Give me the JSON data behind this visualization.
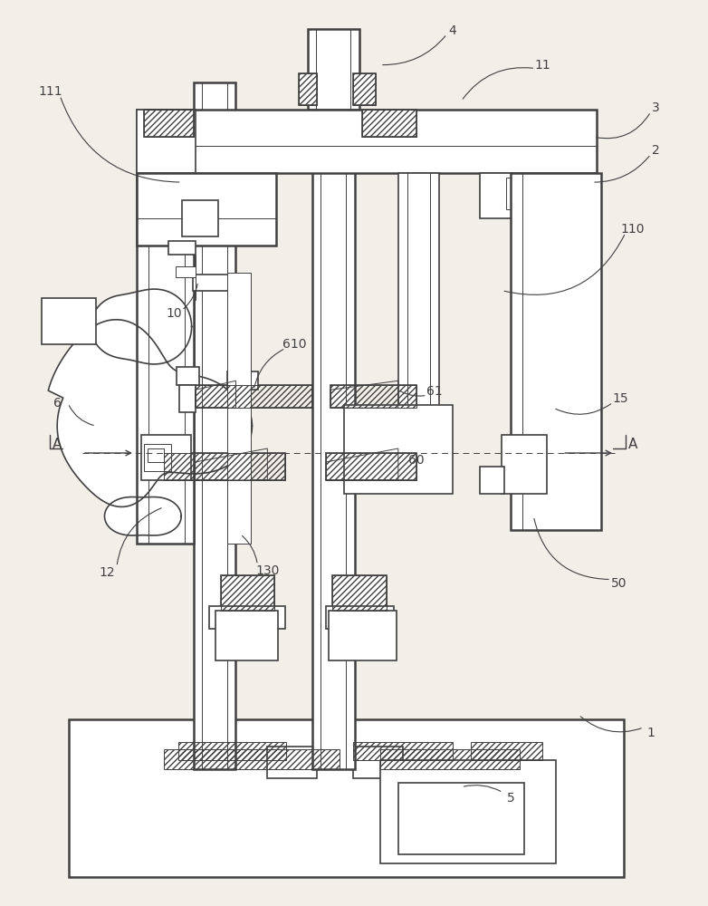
{
  "bg_color": "#f2efe9",
  "lc": "#404040",
  "fig_w": 7.82,
  "fig_h": 10.0,
  "dpi": 100,
  "lw_main": 1.8,
  "lw_med": 1.2,
  "lw_thin": 0.7,
  "lw_label": 0.8,
  "label_fs": 10
}
